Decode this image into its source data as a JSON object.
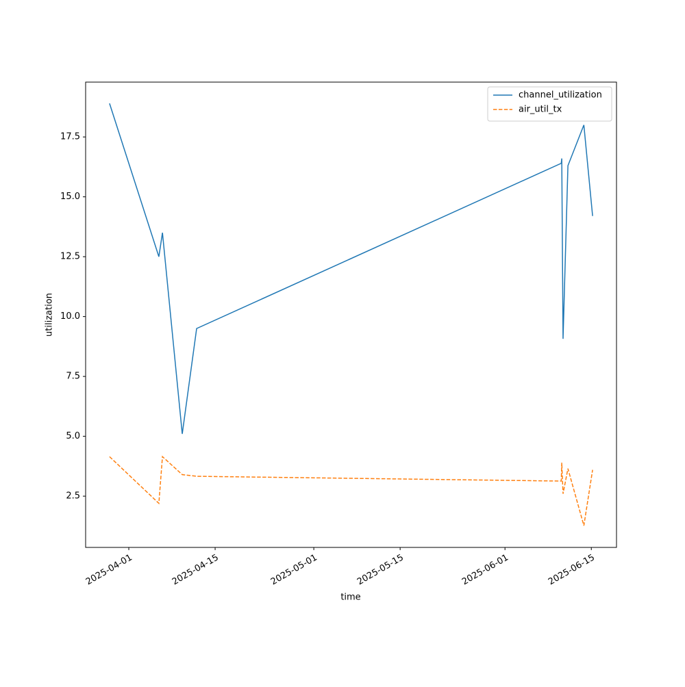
{
  "chart_data": {
    "type": "line",
    "x_label": "time",
    "y_label": "utilization",
    "x": [
      "2025-03-28T21:00",
      "2025-04-05T21:00",
      "2025-04-06T11:00",
      "2025-04-09T16:00",
      "2025-04-12T00:00",
      "2025-06-10T03:00",
      "2025-06-10T05:00",
      "2025-06-10T10:00",
      "2025-06-11T05:00",
      "2025-06-13T19:00",
      "2025-06-15T05:00"
    ],
    "series": [
      {
        "name": "channel_utilization",
        "color": "#1f77b4",
        "dashed": false,
        "values": [
          18.9,
          12.5,
          13.5,
          5.1,
          9.5,
          16.4,
          16.6,
          9.07,
          16.3,
          18.0,
          14.2
        ]
      },
      {
        "name": "air_util_tx",
        "color": "#ff7f0e",
        "dashed": true,
        "values": [
          4.15,
          2.2,
          4.15,
          3.4,
          3.33,
          3.13,
          3.9,
          2.6,
          3.65,
          1.27,
          3.6
        ]
      }
    ],
    "xlim": [
      "2025-03-25T00:00",
      "2025-06-19T02:00"
    ],
    "xticks": [
      "2025-04-01",
      "2025-04-15",
      "2025-05-01",
      "2025-05-15",
      "2025-06-01",
      "2025-06-15"
    ],
    "ylim": [
      0.36,
      19.79
    ],
    "yticks": [
      2.5,
      {
        "value": 5,
        "label": "5.0"
      },
      7.5,
      {
        "value": 10,
        "label": "10.0"
      },
      12.5,
      {
        "value": 15,
        "label": "15.0"
      },
      17.5
    ],
    "grid": false,
    "legend": "upper right"
  }
}
